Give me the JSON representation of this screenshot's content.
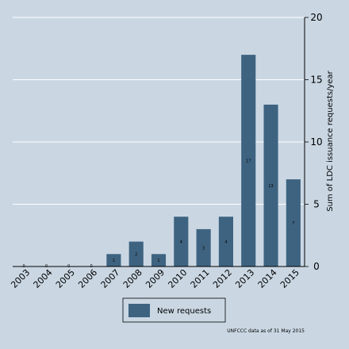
{
  "chart_data": {
    "type": "bar",
    "categories": [
      "2003",
      "2004",
      "2005",
      "2006",
      "2007",
      "2008",
      "2009",
      "2010",
      "2011",
      "2012",
      "2013",
      "2014",
      "2015"
    ],
    "series": [
      {
        "name": "New requests",
        "values": [
          0,
          0,
          0,
          0,
          1,
          2,
          1,
          4,
          3,
          4,
          17,
          13,
          7
        ],
        "color": "#3e6380"
      }
    ],
    "data_labels": [
      "0",
      "0",
      "0",
      "0",
      "1",
      "2",
      "1",
      "4",
      "3",
      "4",
      "17",
      "13",
      "7"
    ],
    "ylabel": "Sum of LDC issuance requests/year",
    "ylim": [
      0,
      20
    ],
    "yticks": [
      0,
      5,
      10,
      15,
      20
    ],
    "y_axis_position": "right",
    "grid": true,
    "legend_position": "bottom",
    "note": "UNFCCC data as of 31 May 2015"
  },
  "colors": {
    "background": "#cad7e3",
    "bar": "#3e6380",
    "grid": "#ffffff"
  }
}
